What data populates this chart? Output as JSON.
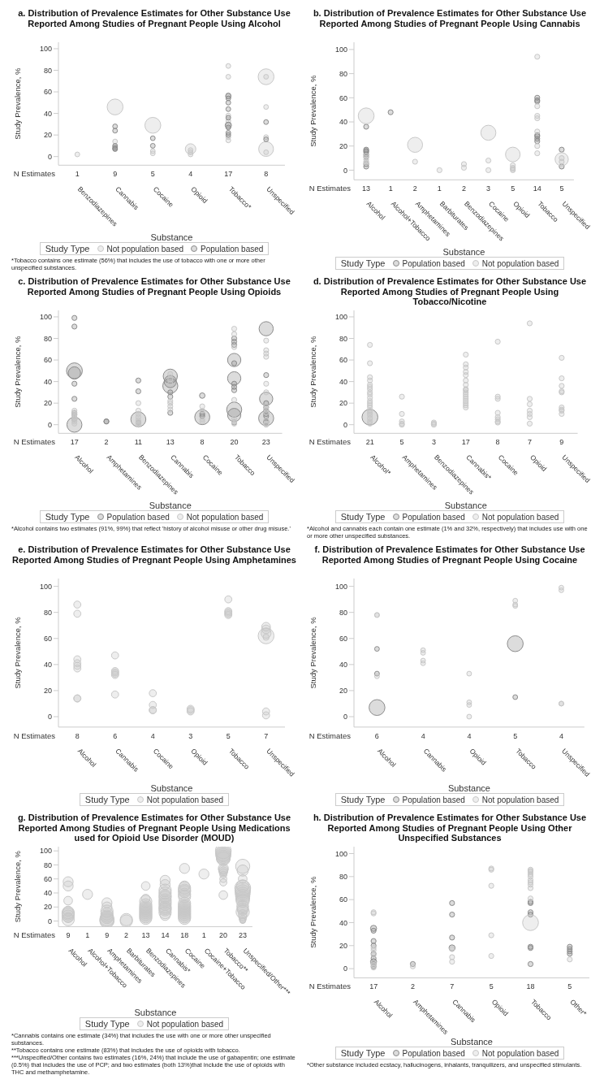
{
  "chart_data": [
    {
      "type": "bubble",
      "title": "a. Distribution of Prevalence Estimates for Other Substance Use Reported Among Studies of Pregnant People Using Alcohol",
      "xlabel": "Substance",
      "ylabel": "Study Prevalence, %",
      "legend_title": "Study Type",
      "legend": "bottom",
      "marker": "circle",
      "categories": [
        "Benzodiazepines",
        "Cannabis",
        "Cocaine",
        "Opioid",
        "Tobacco*",
        "Unspecified"
      ],
      "ylim": [
        -8,
        106
      ],
      "yticks": [
        0,
        20,
        40,
        60,
        80,
        100
      ],
      "annotations": [
        "N Estimates",
        "1",
        "9",
        "5",
        "4",
        "17",
        "8",
        "*Tobacco contains one estimate (56%) that includes the use of tobacco with one or more other unspecified substances."
      ],
      "series": [
        {
          "name": "Not population based",
          "color": "#c8c8c8",
          "x": [
            "Benzodiazepines",
            "Cannabis",
            "Cannabis",
            "Cannabis",
            "Cannabis",
            "Cocaine",
            "Cocaine",
            "Cocaine",
            "Opioid",
            "Opioid",
            "Opioid",
            "Opioid",
            "Tobacco*",
            "Tobacco*",
            "Tobacco*",
            "Tobacco*",
            "Tobacco*",
            "Tobacco*",
            "Tobacco*",
            "Tobacco*",
            "Unspecified",
            "Unspecified",
            "Unspecified",
            "Unspecified",
            "Unspecified",
            "Unspecified"
          ],
          "values": [
            2,
            46,
            14,
            9,
            7,
            29,
            5,
            3,
            7,
            6,
            4,
            2,
            84,
            74,
            57,
            38,
            33,
            30,
            18,
            15,
            74,
            74,
            46,
            18,
            7,
            4
          ],
          "sizes": [
            0.09,
            1,
            0.09,
            0.09,
            0.09,
            1,
            0.09,
            0.09,
            0.44,
            0.09,
            0.09,
            0.09,
            0.09,
            0.09,
            0.09,
            0.09,
            0.09,
            0.09,
            0.09,
            0.09,
            1,
            0.09,
            0.09,
            0.09,
            0.87,
            0.09
          ]
        },
        {
          "name": "Population based",
          "color": "#8c8c8c",
          "x": [
            "Cannabis",
            "Cannabis",
            "Cannabis",
            "Cannabis",
            "Cannabis",
            "Cocaine",
            "Cocaine",
            "Tobacco*",
            "Tobacco*",
            "Tobacco*",
            "Tobacco*",
            "Tobacco*",
            "Tobacco*",
            "Tobacco*",
            "Tobacco*",
            "Tobacco*",
            "Unspecified",
            "Unspecified"
          ],
          "values": [
            28,
            24,
            10,
            8,
            7,
            17,
            10,
            56,
            54,
            50,
            44,
            36,
            29,
            27,
            22,
            20,
            32,
            16
          ],
          "sizes": [
            0.09,
            0.09,
            0.09,
            0.09,
            0.09,
            0.09,
            0.09,
            0.12,
            0.09,
            0.09,
            0.09,
            0.09,
            0.16,
            0.09,
            0.09,
            0.09,
            0.09,
            0.09
          ]
        }
      ]
    },
    {
      "type": "bubble",
      "title": "b. Distribution of Prevalence Estimates for Other Substance Use Reported Among Studies of Pregnant People Using Cannabis",
      "xlabel": "Substance",
      "ylabel": "Study Prevalence, %",
      "legend_title": "Study Type",
      "legend": "bottom",
      "marker": "circle",
      "categories": [
        "Alcohol",
        "Alcohol+Tobacco",
        "Amphetamines",
        "Barbiturates",
        "Benzodiazepines",
        "Cocaine",
        "Opioid",
        "Tobacco",
        "Unspecified"
      ],
      "ylim": [
        -8,
        106
      ],
      "yticks": [
        0,
        20,
        40,
        60,
        80,
        100
      ],
      "annotations": [
        "N Estimates",
        "13",
        "1",
        "2",
        "1",
        "2",
        "3",
        "5",
        "14",
        "5"
      ],
      "series": [
        {
          "name": "Population based",
          "color": "#8c8c8c",
          "x": [
            "Alcohol",
            "Alcohol",
            "Alcohol",
            "Alcohol",
            "Alcohol",
            "Alcohol",
            "Alcohol",
            "Alcohol",
            "Alcohol+Tobacco",
            "Tobacco",
            "Tobacco",
            "Tobacco",
            "Tobacco",
            "Tobacco",
            "Tobacco",
            "Tobacco",
            "Unspecified",
            "Unspecified"
          ],
          "values": [
            36,
            17,
            16,
            15,
            13,
            11,
            5,
            3,
            48,
            60,
            58,
            57,
            29,
            28,
            26,
            24,
            17,
            3
          ],
          "sizes": [
            0.1,
            0.1,
            0.1,
            0.1,
            0.1,
            0.1,
            0.1,
            0.1,
            0.1,
            0.1,
            0.1,
            0.1,
            0.1,
            0.1,
            0.1,
            0.1,
            0.1,
            0.1
          ]
        },
        {
          "name": "Not population based",
          "color": "#c8c8c8",
          "x": [
            "Alcohol",
            "Alcohol",
            "Alcohol",
            "Alcohol",
            "Alcohol",
            "Amphetamines",
            "Amphetamines",
            "Barbiturates",
            "Benzodiazepines",
            "Benzodiazepines",
            "Cocaine",
            "Cocaine",
            "Cocaine",
            "Opioid",
            "Opioid",
            "Opioid",
            "Opioid",
            "Opioid",
            "Tobacco",
            "Tobacco",
            "Tobacco",
            "Tobacco",
            "Tobacco",
            "Tobacco",
            "Tobacco",
            "Unspecified",
            "Unspecified",
            "Unspecified"
          ],
          "values": [
            45,
            12,
            9,
            7,
            6,
            21,
            7,
            0,
            5,
            2,
            31,
            8,
            0,
            13,
            4,
            2,
            1,
            0,
            94,
            53,
            45,
            43,
            32,
            20,
            14,
            9,
            10,
            7
          ],
          "sizes": [
            1,
            0.1,
            0.1,
            0.1,
            0.1,
            0.9,
            0.1,
            0.1,
            0.1,
            0.1,
            0.9,
            0.1,
            0.1,
            0.85,
            0.1,
            0.1,
            0.1,
            0.1,
            0.1,
            0.1,
            0.1,
            0.1,
            0.1,
            0.1,
            0.1,
            0.7,
            0.1,
            0.1
          ]
        }
      ]
    },
    {
      "type": "bubble",
      "title": "c. Distribution of Prevalence Estimates for Other Substance Use Reported Among Studies of Pregnant People Using Opioids",
      "xlabel": "Substance",
      "ylabel": "Study Prevalence, %",
      "legend_title": "Study Type",
      "legend": "bottom",
      "marker": "circle",
      "categories": [
        "Alcohol",
        "Amphetamines",
        "Benzodiazepines",
        "Cannabis",
        "Cocaine",
        "Tobacco",
        "Unspecified"
      ],
      "ylim": [
        -8,
        106
      ],
      "yticks": [
        0,
        20,
        40,
        60,
        80,
        100
      ],
      "annotations": [
        "N Estimates",
        "17",
        "2",
        "11",
        "13",
        "8",
        "20",
        "23",
        "*Alcohol contains two estimates (91%, 99%) that reflect 'history of alcohol misuse or other drug misuse.'"
      ],
      "series": [
        {
          "name": "Population based",
          "color": "#8c8c8c",
          "x": [
            "Alcohol",
            "Alcohol",
            "Alcohol",
            "Alcohol",
            "Alcohol",
            "Alcohol",
            "Alcohol",
            "Alcohol",
            "Alcohol",
            "Alcohol",
            "Amphetamines",
            "Amphetamines",
            "Benzodiazepines",
            "Benzodiazepines",
            "Benzodiazepines",
            "Benzodiazepines",
            "Cannabis",
            "Cannabis",
            "Cannabis",
            "Cannabis",
            "Cannabis",
            "Cannabis",
            "Cocaine",
            "Cocaine",
            "Cocaine",
            "Cocaine",
            "Tobacco",
            "Tobacco",
            "Tobacco",
            "Tobacco",
            "Tobacco",
            "Tobacco",
            "Tobacco",
            "Tobacco",
            "Tobacco",
            "Tobacco",
            "Tobacco",
            "Tobacco",
            "Unspecified",
            "Unspecified",
            "Unspecified",
            "Unspecified",
            "Unspecified",
            "Unspecified",
            "Unspecified",
            "Unspecified",
            "Unspecified",
            "Unspecified",
            "Unspecified"
          ],
          "values": [
            99,
            91,
            50,
            48,
            38,
            24,
            11,
            9,
            5,
            0,
            3,
            3,
            41,
            31,
            5,
            2,
            45,
            40,
            36,
            30,
            26,
            11,
            27,
            10,
            8,
            7,
            80,
            77,
            74,
            60,
            57,
            43,
            38,
            35,
            32,
            14,
            9,
            2,
            89,
            46,
            24,
            20,
            16,
            13,
            10,
            8,
            6,
            3,
            2
          ],
          "sizes": [
            0.1,
            0.1,
            1,
            0.6,
            0.1,
            0.1,
            0.1,
            0.1,
            0.1,
            0.9,
            0.1,
            0.1,
            0.1,
            0.1,
            0.9,
            0.1,
            0.8,
            0.6,
            0.9,
            0.1,
            0.1,
            0.1,
            0.12,
            0.1,
            0.1,
            0.9,
            0.1,
            0.1,
            0.1,
            0.7,
            0.1,
            0.7,
            0.1,
            0.1,
            0.1,
            0.9,
            0.7,
            0.1,
            0.8,
            0.1,
            0.7,
            0.1,
            0.1,
            0.1,
            0.1,
            0.1,
            0.9,
            0.1,
            0.1
          ]
        },
        {
          "name": "Not population based",
          "color": "#c8c8c8",
          "x": [
            "Alcohol",
            "Alcohol",
            "Alcohol",
            "Alcohol",
            "Alcohol",
            "Alcohol",
            "Alcohol",
            "Benzodiazepines",
            "Benzodiazepines",
            "Benzodiazepines",
            "Benzodiazepines",
            "Benzodiazepines",
            "Benzodiazepines",
            "Benzodiazepines",
            "Cannabis",
            "Cannabis",
            "Cannabis",
            "Cannabis",
            "Cannabis",
            "Cannabis",
            "Cannabis",
            "Cocaine",
            "Cocaine",
            "Cocaine",
            "Cocaine",
            "Tobacco",
            "Tobacco",
            "Tobacco",
            "Tobacco",
            "Tobacco",
            "Tobacco",
            "Tobacco",
            "Tobacco",
            "Unspecified",
            "Unspecified",
            "Unspecified",
            "Unspecified",
            "Unspecified",
            "Unspecified",
            "Unspecified",
            "Unspecified",
            "Unspecified",
            "Unspecified",
            "Unspecified",
            "Unspecified"
          ],
          "values": [
            13,
            11,
            9,
            7,
            5,
            3,
            1,
            20,
            13,
            10,
            7,
            4,
            2,
            0,
            47,
            42,
            38,
            22,
            20,
            17,
            14,
            17,
            13,
            5,
            3,
            89,
            84,
            72,
            23,
            null,
            6,
            3,
            1,
            78,
            69,
            66,
            63,
            38,
            30,
            17,
            14,
            11,
            4,
            1,
            0
          ],
          "sizes": [
            0.1,
            0.1,
            0.1,
            0.1,
            0.1,
            0.1,
            0.1,
            0.1,
            0.1,
            0.1,
            0.1,
            0.1,
            0.1,
            0.1,
            0.1,
            0.1,
            0.1,
            0.1,
            0.1,
            0.1,
            0.1,
            0.1,
            0.1,
            0.1,
            0.1,
            0.1,
            0.1,
            0.1,
            0.1,
            null,
            0.1,
            0.1,
            0.1,
            0.1,
            0.1,
            0.1,
            0.1,
            0.1,
            0.1,
            0.1,
            0.1,
            0.1,
            0.1,
            0.1,
            0.1
          ]
        }
      ]
    },
    {
      "type": "bubble",
      "title": "d. Distribution of Prevalence Estimates for Other Substance Use Reported Among Studies of Pregnant People Using Tobacco/Nicotine",
      "xlabel": "Substance",
      "ylabel": "Study Prevalence, %",
      "legend_title": "Study Type",
      "legend": "bottom",
      "marker": "circle",
      "categories": [
        "Alcohol*",
        "Amphetamines",
        "Benzodiazepines",
        "Cannabis*",
        "Cocaine",
        "Opioid",
        "Unspecified"
      ],
      "ylim": [
        -8,
        106
      ],
      "yticks": [
        0,
        20,
        40,
        60,
        80,
        100
      ],
      "annotations": [
        "N Estimates",
        "21",
        "5",
        "3",
        "17",
        "8",
        "7",
        "9",
        "*Alcohol and cannabis each contain one estimate (1% and 32%, respectively) that includes use with one or more other unspecified substances."
      ],
      "series": [
        {
          "name": "Population based",
          "color": "#8c8c8c",
          "x": [
            "Alcohol*"
          ],
          "values": [
            7
          ],
          "sizes": [
            1
          ]
        },
        {
          "name": "Not population based",
          "color": "#c8c8c8",
          "x": [
            "Alcohol*",
            "Alcohol*",
            "Alcohol*",
            "Alcohol*",
            "Alcohol*",
            "Alcohol*",
            "Alcohol*",
            "Alcohol*",
            "Alcohol*",
            "Alcohol*",
            "Alcohol*",
            "Alcohol*",
            "Alcohol*",
            "Alcohol*",
            "Alcohol*",
            "Alcohol*",
            "Alcohol*",
            "Alcohol*",
            "Alcohol*",
            "Alcohol*",
            "Amphetamines",
            "Amphetamines",
            "Amphetamines",
            "Amphetamines",
            "Amphetamines",
            "Benzodiazepines",
            "Benzodiazepines",
            "Benzodiazepines",
            "Cannabis*",
            "Cannabis*",
            "Cannabis*",
            "Cannabis*",
            "Cannabis*",
            "Cannabis*",
            "Cannabis*",
            "Cannabis*",
            "Cannabis*",
            "Cannabis*",
            "Cannabis*",
            "Cannabis*",
            "Cannabis*",
            "Cannabis*",
            "Cannabis*",
            "Cannabis*",
            "Cannabis*",
            "Cocaine",
            "Cocaine",
            "Cocaine",
            "Cocaine",
            "Cocaine",
            "Cocaine",
            "Cocaine",
            "Cocaine",
            "Opioid",
            "Opioid",
            "Opioid",
            "Opioid",
            "Opioid",
            "Opioid",
            "Opioid",
            "Unspecified",
            "Unspecified",
            "Unspecified",
            "Unspecified",
            "Unspecified",
            "Unspecified",
            "Unspecified",
            "Unspecified",
            "Unspecified"
          ],
          "values": [
            74,
            57,
            44,
            41,
            37,
            35,
            33,
            30,
            28,
            25,
            22,
            20,
            18,
            16,
            13,
            11,
            9,
            6,
            3,
            1,
            26,
            10,
            3,
            1,
            0,
            2,
            1,
            0,
            65,
            56,
            53,
            49,
            46,
            41,
            37,
            33,
            32,
            30,
            28,
            26,
            24,
            22,
            20,
            18,
            16,
            77,
            26,
            24,
            11,
            7,
            5,
            3,
            2,
            94,
            24,
            19,
            13,
            10,
            7,
            1,
            62,
            43,
            36,
            31,
            30,
            16,
            14,
            13,
            10
          ],
          "sizes": [
            0.1,
            0.1,
            0.1,
            0.1,
            0.1,
            0.1,
            0.1,
            0.1,
            0.1,
            0.1,
            0.1,
            0.1,
            0.1,
            0.1,
            0.1,
            0.1,
            0.1,
            0.1,
            0.1,
            0.1,
            0.1,
            0.1,
            0.1,
            0.1,
            0.1,
            0.1,
            0.1,
            0.1,
            0.1,
            0.1,
            0.1,
            0.1,
            0.1,
            0.1,
            0.1,
            0.1,
            0.1,
            0.1,
            0.1,
            0.1,
            0.1,
            0.1,
            0.1,
            0.1,
            0.1,
            0.1,
            0.1,
            0.1,
            0.1,
            0.1,
            0.1,
            0.1,
            0.1,
            0.1,
            0.1,
            0.1,
            0.1,
            0.1,
            0.1,
            0.1,
            0.1,
            0.1,
            0.1,
            0.1,
            0.1,
            0.1,
            0.1,
            0.1,
            0.1
          ]
        }
      ]
    },
    {
      "type": "bubble",
      "title": "e. Distribution of Prevalence Estimates for Other Substance Use Reported Among Studies of Pregnant People Using Amphetamines",
      "xlabel": "Substance",
      "ylabel": "Study Prevalence, %",
      "legend_title": "Study Type",
      "legend": "bottom",
      "marker": "circle",
      "categories": [
        "Alcohol",
        "Cannabis",
        "Cocaine",
        "Opioid",
        "Tobacco",
        "Unspecified"
      ],
      "ylim": [
        -8,
        106
      ],
      "yticks": [
        0,
        20,
        40,
        60,
        80,
        100
      ],
      "annotations": [
        "N Estimates",
        "8",
        "6",
        "4",
        "3",
        "5",
        "7"
      ],
      "series": [
        {
          "name": "Not population based",
          "color": "#c8c8c8",
          "x": [
            "Alcohol",
            "Alcohol",
            "Alcohol",
            "Alcohol",
            "Alcohol",
            "Alcohol",
            "Alcohol",
            "Alcohol",
            "Cannabis",
            "Cannabis",
            "Cannabis",
            "Cannabis",
            "Cannabis",
            "Cannabis",
            "Cocaine",
            "Cocaine",
            "Cocaine",
            "Cocaine",
            "Opioid",
            "Opioid",
            "Opioid",
            "Tobacco",
            "Tobacco",
            "Tobacco",
            "Tobacco",
            "Tobacco",
            "Unspecified",
            "Unspecified",
            "Unspecified",
            "Unspecified",
            "Unspecified",
            "Unspecified",
            "Unspecified"
          ],
          "values": [
            86,
            79,
            44,
            41,
            39,
            37,
            14,
            14,
            47,
            35,
            34,
            33,
            32,
            17,
            18,
            9,
            5,
            5,
            6,
            5,
            4,
            90,
            81,
            80,
            79,
            78,
            69,
            67,
            64,
            62,
            61,
            4,
            1
          ],
          "sizes": [
            0.2,
            0.2,
            0.2,
            0.2,
            0.2,
            0.2,
            0.2,
            0.2,
            0.2,
            0.2,
            0.2,
            0.2,
            0.2,
            0.2,
            0.2,
            0.2,
            0.2,
            0.2,
            0.2,
            0.2,
            0.2,
            0.2,
            0.2,
            0.2,
            0.2,
            0.2,
            0.3,
            0.3,
            0.4,
            1,
            0.15,
            0.2,
            0.2
          ]
        }
      ]
    },
    {
      "type": "bubble",
      "title": "f. Distribution of Prevalence Estimates for Other Substance Use Reported Among Studies of Pregnant People Using Cocaine",
      "xlabel": "Substance",
      "ylabel": "Study Prevalence, %",
      "legend_title": "Study Type",
      "legend": "bottom",
      "marker": "circle",
      "categories": [
        "Alcohol",
        "Cannabis",
        "Opioid",
        "Tobacco",
        "Unspecified"
      ],
      "ylim": [
        -8,
        106
      ],
      "yticks": [
        0,
        20,
        40,
        60,
        80,
        100
      ],
      "annotations": [
        "N Estimates",
        "6",
        "4",
        "4",
        "5",
        "4"
      ],
      "series": [
        {
          "name": "Population based",
          "color": "#8c8c8c",
          "x": [
            "Alcohol",
            "Alcohol",
            "Alcohol",
            "Tobacco",
            "Tobacco"
          ],
          "values": [
            52,
            33,
            7,
            56,
            15
          ],
          "sizes": [
            0.09,
            0.09,
            1,
            1,
            0.09
          ]
        },
        {
          "name": "Not population based",
          "color": "#c8c8c8",
          "x": [
            "Alcohol",
            "Alcohol",
            "Alcohol",
            "Cannabis",
            "Cannabis",
            "Cannabis",
            "Cannabis",
            "Opioid",
            "Opioid",
            "Opioid",
            "Opioid",
            "Tobacco",
            "Tobacco",
            "Tobacco",
            "Unspecified",
            "Unspecified",
            "Unspecified",
            "Unspecified"
          ],
          "values": [
            78,
            78,
            31,
            51,
            49,
            43,
            41,
            33,
            11,
            9,
            0,
            89,
            86,
            85,
            99,
            97,
            10,
            10
          ],
          "sizes": [
            0.09,
            0.09,
            0.09,
            0.09,
            0.09,
            0.09,
            0.09,
            0.09,
            0.09,
            0.09,
            0.09,
            0.09,
            0.09,
            0.09,
            0.09,
            0.09,
            0.09,
            0.09
          ]
        }
      ]
    },
    {
      "type": "bubble",
      "title": "g. Distribution of Prevalence Estimates for Other Substance Use Reported Among Studies of Pregnant People Using Medications used for Opioid Use Disorder (MOUD)",
      "xlabel": "Substance",
      "ylabel": "Study Prevalence, %",
      "legend_title": "Study Type",
      "legend": "bottom",
      "marker": "circle",
      "categories": [
        "Alcohol",
        "Alcohol+Tobacco",
        "Amphetamines",
        "Barbiturates",
        "Benzodiazepines",
        "Cannabis*",
        "Cocaine",
        "Cocaine+Tobacco",
        "Tobacco**",
        "Unspecified/Other***"
      ],
      "ylim": [
        -8,
        106
      ],
      "yticks": [
        0,
        20,
        40,
        60,
        80,
        100
      ],
      "annotations": [
        "N Estimates",
        "9",
        "1",
        "9",
        "2",
        "13",
        "14",
        "18",
        "1",
        "20",
        "23",
        "*Cannabis contains one estimate (34%) that includes the use with one or more other unspecified substances.",
        "**Tobacco contains one estimate (83%) that includes the use of opioids with tobacco.",
        "***Unspecified/Other contains two estimates (16%, 24%) that include the use of gabapentin; one estimate (0.5%) that includes the use of PCP; and two estimates (both 13%)that include the use of opioids with THC and methamphetamine."
      ],
      "series": [
        {
          "name": "Not population based",
          "color": "#c8c8c8",
          "x": [
            "Alcohol",
            "Alcohol",
            "Alcohol",
            "Alcohol",
            "Alcohol",
            "Alcohol",
            "Alcohol",
            "Alcohol",
            "Alcohol",
            "Alcohol+Tobacco",
            "Amphetamines",
            "Amphetamines",
            "Amphetamines",
            "Amphetamines",
            "Amphetamines",
            "Amphetamines",
            "Amphetamines",
            "Amphetamines",
            "Amphetamines",
            "Barbiturates",
            "Barbiturates",
            "Benzodiazepines",
            "Benzodiazepines",
            "Benzodiazepines",
            "Benzodiazepines",
            "Benzodiazepines",
            "Benzodiazepines",
            "Benzodiazepines",
            "Benzodiazepines",
            "Benzodiazepines",
            "Benzodiazepines",
            "Benzodiazepines",
            "Benzodiazepines",
            "Benzodiazepines",
            "Cannabis*",
            "Cannabis*",
            "Cannabis*",
            "Cannabis*",
            "Cannabis*",
            "Cannabis*",
            "Cannabis*",
            "Cannabis*",
            "Cannabis*",
            "Cannabis*",
            "Cannabis*",
            "Cannabis*",
            "Cannabis*",
            "Cannabis*",
            "Cocaine",
            "Cocaine",
            "Cocaine",
            "Cocaine",
            "Cocaine",
            "Cocaine",
            "Cocaine",
            "Cocaine",
            "Cocaine",
            "Cocaine",
            "Cocaine",
            "Cocaine",
            "Cocaine",
            "Cocaine",
            "Cocaine",
            "Cocaine",
            "Cocaine",
            "Cocaine",
            "Cocaine+Tobacco",
            "Tobacco**",
            "Tobacco**",
            "Tobacco**",
            "Tobacco**",
            "Tobacco**",
            "Tobacco**",
            "Tobacco**",
            "Tobacco**",
            "Tobacco**",
            "Tobacco**",
            "Tobacco**",
            "Tobacco**",
            "Tobacco**",
            "Tobacco**",
            "Tobacco**",
            "Tobacco**",
            "Tobacco**",
            "Tobacco**",
            "Tobacco**",
            "Tobacco**",
            "Unspecified/Other***",
            "Unspecified/Other***",
            "Unspecified/Other***",
            "Unspecified/Other***",
            "Unspecified/Other***",
            "Unspecified/Other***",
            "Unspecified/Other***",
            "Unspecified/Other***",
            "Unspecified/Other***",
            "Unspecified/Other***",
            "Unspecified/Other***",
            "Unspecified/Other***",
            "Unspecified/Other***",
            "Unspecified/Other***",
            "Unspecified/Other***",
            "Unspecified/Other***",
            "Unspecified/Other***",
            "Unspecified/Other***",
            "Unspecified/Other***",
            "Unspecified/Other***",
            "Unspecified/Other***",
            "Unspecified/Other***",
            "Unspecified/Other***"
          ],
          "values": [
            56,
            50,
            29,
            14,
            12,
            10,
            7,
            5,
            2,
            38,
            26,
            20,
            14,
            10,
            7,
            5,
            3,
            1,
            0,
            2,
            0,
            50,
            32,
            28,
            23,
            20,
            18,
            16,
            14,
            12,
            10,
            8,
            6,
            4,
            58,
            52,
            44,
            40,
            36,
            34,
            30,
            27,
            24,
            20,
            18,
            16,
            12,
            8,
            75,
            50,
            47,
            44,
            42,
            38,
            35,
            25,
            22,
            20,
            18,
            16,
            14,
            12,
            10,
            8,
            6,
            4,
            67,
            100,
            97,
            95,
            93,
            91,
            89,
            null,
            null,
            null,
            null,
            null,
            null,
            75,
            73,
            71,
            69,
            66,
            60,
            55,
            37,
            78,
            72,
            60,
            50,
            47,
            44,
            41,
            38,
            35,
            32,
            29,
            null,
            null,
            21,
            18,
            16,
            13,
            null,
            10,
            6,
            3,
            1,
            0.5
          ],
          "sizes": [
            0.4,
            0.4,
            0.3,
            0.4,
            0.6,
            0.6,
            0.6,
            0.4,
            0.6,
            0.4,
            0.4,
            0.4,
            0.6,
            0.6,
            0.6,
            0.6,
            0.8,
            0.8,
            0.8,
            0.6,
            0.6,
            0.3,
            0.3,
            0.6,
            0.6,
            0.6,
            0.6,
            0.6,
            0.6,
            0.6,
            0.6,
            0.6,
            0.6,
            0.6,
            0.4,
            0.4,
            0.6,
            0.6,
            0.6,
            0.6,
            0.6,
            0.6,
            0.6,
            0.6,
            0.6,
            0.6,
            0.6,
            0.4,
            0.4,
            0.4,
            0.6,
            0.6,
            0.6,
            0.6,
            0.6,
            0.6,
            0.6,
            0.6,
            0.6,
            0.6,
            0.6,
            0.6,
            0.6,
            0.6,
            0.6,
            0.6,
            0.4,
            1,
            0.95,
            0.9,
            0.85,
            0.8,
            0.75,
            null,
            null,
            null,
            null,
            null,
            null,
            0.4,
            0.35,
            0.3,
            0.25,
            0.2,
            0.2,
            0.2,
            0.3,
            0.8,
            0.5,
            0.3,
            0.6,
            1,
            0.95,
            0.9,
            0.85,
            0.8,
            0.75,
            0.7,
            null,
            null,
            0.55,
            0.5,
            0.45,
            0.7,
            null,
            0.3,
            0.25,
            0.2,
            0.15,
            0.12
          ]
        }
      ]
    },
    {
      "type": "bubble",
      "title": "h. Distribution of Prevalence Estimates for Other Substance Use Reported Among Studies of Pregnant People Using Other Unspecified Substances",
      "xlabel": "Substance",
      "ylabel": "Study Prevalence, %",
      "legend_title": "Study Type",
      "legend": "bottom",
      "marker": "circle",
      "categories": [
        "Alcohol",
        "Amphetamines",
        "Cannabis",
        "Opioid",
        "Tobacco",
        "Other*"
      ],
      "ylim": [
        -8,
        106
      ],
      "yticks": [
        0,
        20,
        40,
        60,
        80,
        100
      ],
      "annotations": [
        "N Estimates",
        "17",
        "2",
        "7",
        "5",
        "18",
        "5",
        "*Other substance included ecstacy, hallucinogens, inhalants, tranquilizers, and unspecified stimulants."
      ],
      "series": [
        {
          "name": "Population based",
          "color": "#8c8c8c",
          "x": [
            "Alcohol",
            "Alcohol",
            "Alcohol",
            "Alcohol",
            "Alcohol",
            "Alcohol",
            "Alcohol",
            "Alcohol",
            "Alcohol",
            "Amphetamines",
            "Cannabis",
            "Cannabis",
            "Cannabis",
            "Cannabis",
            "Tobacco",
            "Tobacco",
            "Tobacco",
            "Tobacco",
            "Tobacco",
            "Tobacco",
            "Tobacco",
            "Other*",
            "Other*",
            "Other*",
            "Other*"
          ],
          "values": [
            35,
            33,
            24,
            20,
            13,
            9,
            6,
            4,
            2,
            4,
            57,
            47,
            27,
            18,
            58,
            57,
            49,
            47,
            19,
            18,
            4,
            19,
            17,
            15,
            13
          ],
          "sizes": [
            0.15,
            0.1,
            0.1,
            0.1,
            0.1,
            0.1,
            0.15,
            0.1,
            0.1,
            0.1,
            0.1,
            0.1,
            0.1,
            0.15,
            0.1,
            0.1,
            0.1,
            0.1,
            0.1,
            0.1,
            0.1,
            0.1,
            0.1,
            0.1,
            0.1
          ]
        },
        {
          "name": "Not population based",
          "color": "#c8c8c8",
          "x": [
            "Alcohol",
            "Alcohol",
            "Alcohol",
            "Alcohol",
            "Alcohol",
            "Alcohol",
            "Alcohol",
            "Alcohol",
            "Amphetamines",
            "Cannabis",
            "Cannabis",
            "Cannabis",
            "Opioid",
            "Opioid",
            "Opioid",
            "Opioid",
            "Opioid",
            "Tobacco",
            "Tobacco",
            "Tobacco",
            "Tobacco",
            "Tobacco",
            "Tobacco",
            "Tobacco",
            "Tobacco",
            "Tobacco",
            "Tobacco",
            "Tobacco",
            "Other*"
          ],
          "values": [
            49,
            48,
            18,
            16,
            12,
            5,
            3,
            1,
            2,
            17,
            10,
            6,
            87,
            86,
            72,
            29,
            11,
            86,
            85,
            84,
            82,
            80,
            77,
            75,
            73,
            70,
            61,
            40,
            8
          ],
          "sizes": [
            0.1,
            0.1,
            0.1,
            0.1,
            0.1,
            0.1,
            0.1,
            0.1,
            0.1,
            0.1,
            0.1,
            0.1,
            0.1,
            0.1,
            0.1,
            0.1,
            0.1,
            0.1,
            0.1,
            0.1,
            0.1,
            0.1,
            0.1,
            0.1,
            0.1,
            0.1,
            0.1,
            1,
            0.1
          ]
        }
      ]
    }
  ]
}
